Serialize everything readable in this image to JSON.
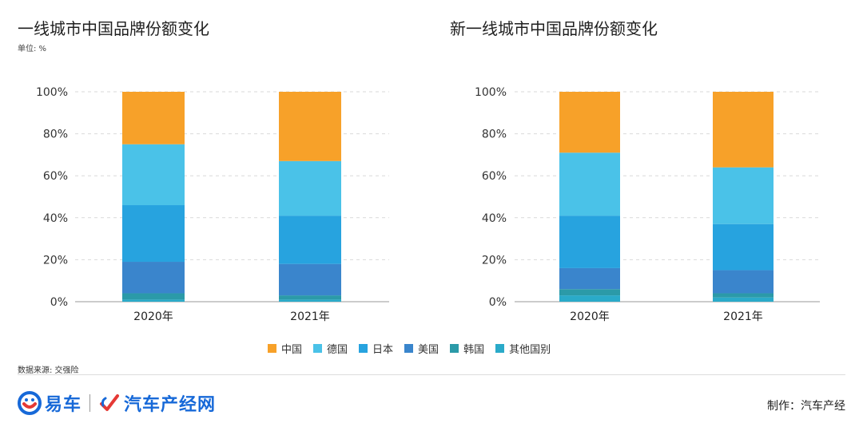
{
  "chart_data": [
    {
      "type": "bar",
      "stacked": true,
      "title": "一线城市中国品牌份额变化",
      "unit_label": "单位: %",
      "categories": [
        "2020年",
        "2021年"
      ],
      "series": [
        {
          "name": "其他国别",
          "values": [
            1,
            1
          ]
        },
        {
          "name": "韩国",
          "values": [
            3,
            2
          ]
        },
        {
          "name": "美国",
          "values": [
            15,
            15
          ]
        },
        {
          "name": "日本",
          "values": [
            27,
            23
          ]
        },
        {
          "name": "德国",
          "values": [
            29,
            26
          ]
        },
        {
          "name": "中国",
          "values": [
            25,
            33
          ]
        }
      ],
      "yticks": [
        "0%",
        "20%",
        "40%",
        "60%",
        "80%",
        "100%"
      ],
      "ylim": [
        0,
        100
      ],
      "grid": true
    },
    {
      "type": "bar",
      "stacked": true,
      "title": "新一线城市中国品牌份额变化",
      "categories": [
        "2020年",
        "2021年"
      ],
      "series": [
        {
          "name": "其他国别",
          "values": [
            3,
            2
          ]
        },
        {
          "name": "韩国",
          "values": [
            3,
            2
          ]
        },
        {
          "name": "美国",
          "values": [
            10,
            11
          ]
        },
        {
          "name": "日本",
          "values": [
            25,
            22
          ]
        },
        {
          "name": "德国",
          "values": [
            30,
            27
          ]
        },
        {
          "name": "中国",
          "values": [
            29,
            36
          ]
        }
      ],
      "yticks": [
        "0%",
        "20%",
        "40%",
        "60%",
        "80%",
        "100%"
      ],
      "ylim": [
        0,
        100
      ],
      "grid": true
    }
  ],
  "legend": [
    {
      "name": "中国",
      "color": "#f7a129"
    },
    {
      "name": "德国",
      "color": "#4ac2e8"
    },
    {
      "name": "日本",
      "color": "#27a3df"
    },
    {
      "name": "美国",
      "color": "#3a85cc"
    },
    {
      "name": "韩国",
      "color": "#2b9aa8"
    },
    {
      "name": "其他国别",
      "color": "#2aaac9"
    }
  ],
  "source": "数据来源: 交强险",
  "footer": {
    "logo1": "易车",
    "logo2": "汽车产经网",
    "credit": "制作：汽车产经"
  }
}
